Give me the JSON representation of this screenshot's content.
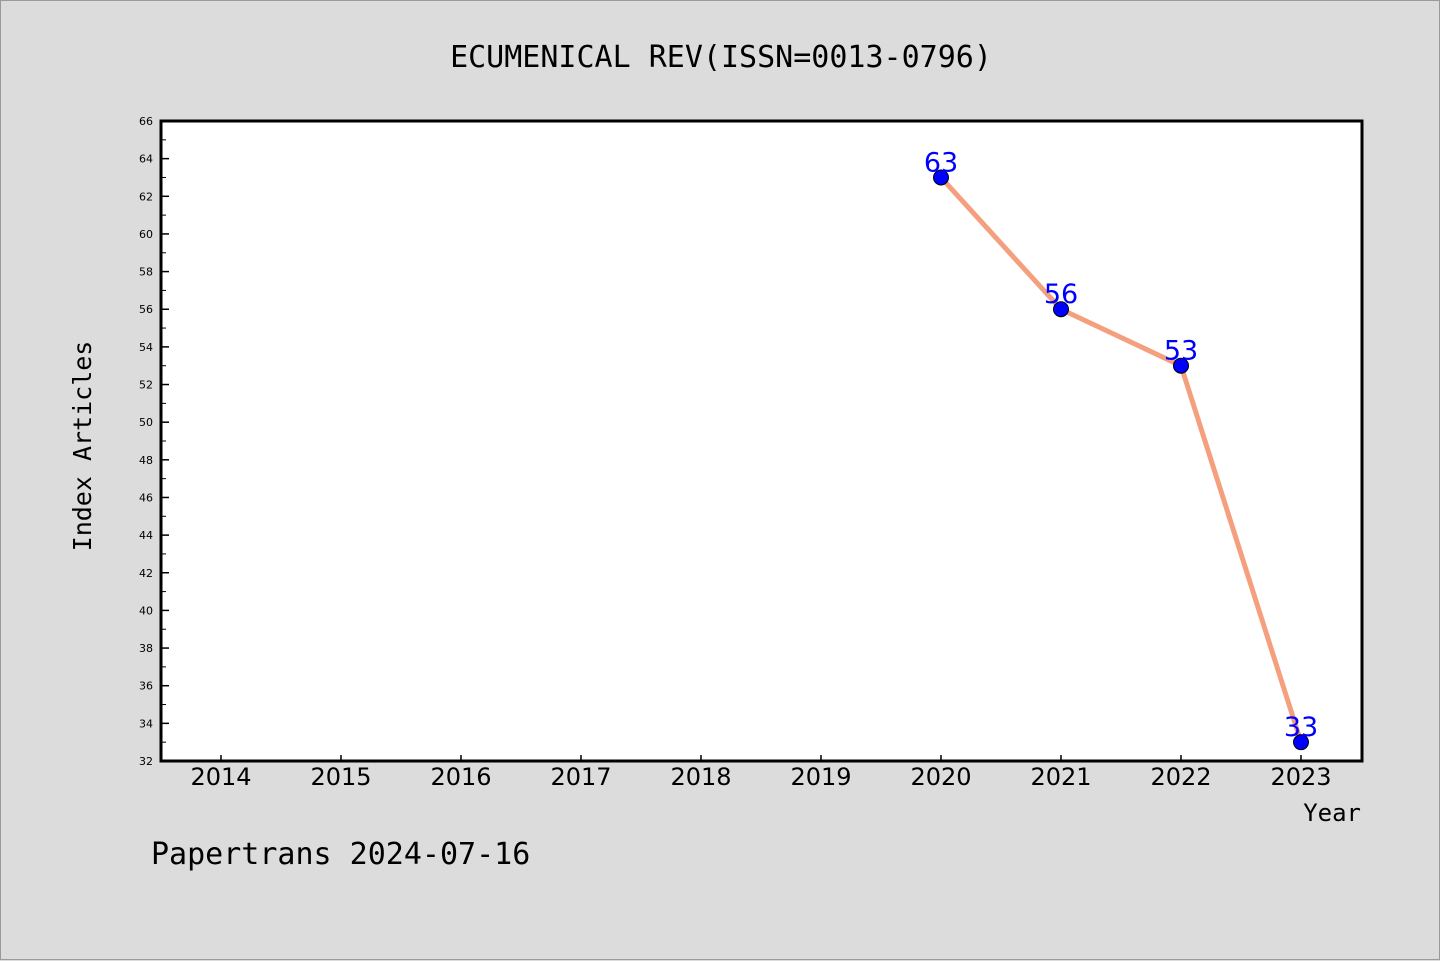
{
  "chart_data": {
    "type": "line",
    "title": "ECUMENICAL REV(ISSN=0013-0796)",
    "xlabel": "Year",
    "ylabel": "Index Articles",
    "categories": [
      "2014",
      "2015",
      "2016",
      "2017",
      "2018",
      "2019",
      "2020",
      "2021",
      "2022",
      "2023"
    ],
    "series": [
      {
        "x": [
          "2020",
          "2021",
          "2022",
          "2023"
        ],
        "values": [
          63,
          56,
          53,
          33
        ]
      }
    ],
    "ylim": [
      32,
      66
    ],
    "yticks": [
      32,
      34,
      36,
      38,
      40,
      42,
      44,
      46,
      48,
      50,
      52,
      54,
      56,
      58,
      60,
      62,
      64,
      66
    ],
    "grid": false,
    "legend": "none",
    "line_color": "#f4a07f",
    "marker_color": "#0000ff",
    "label_color": "#0000ff"
  },
  "footer": "Papertrans 2024-07-16"
}
